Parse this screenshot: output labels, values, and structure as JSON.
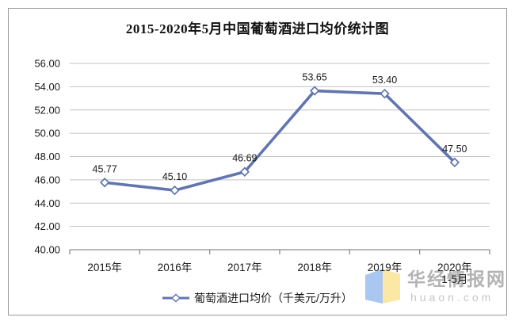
{
  "title": "2015-2020年5月中国葡萄酒进口均价统计图",
  "legend": {
    "label": "葡萄酒进口均价（千美元/万升）"
  },
  "watermark": {
    "site_name": "华经情报网",
    "site_url": "huaon.com"
  },
  "colors": {
    "line": "#6176AF",
    "marker_fill": "#FFFFFF",
    "grid": "#C3C3C3",
    "axis": "#8C8C8C",
    "text": "#1A1A1A",
    "border": "#9A9A9A",
    "watermark_text": "#A6A6A6",
    "watermark_url": "#C6C6C6",
    "logo_blue": "#A9C7F0",
    "logo_yellow": "#FAE8A4"
  },
  "chart_data": {
    "type": "line",
    "title": "2015-2020年5月中国葡萄酒进口均价统计图",
    "categories": [
      "2015年",
      "2016年",
      "2017年",
      "2018年",
      "2019年",
      "2020年"
    ],
    "category_sublabels": [
      "",
      "",
      "",
      "",
      "",
      "1-5月"
    ],
    "series": [
      {
        "name": "葡萄酒进口均价（千美元/万升）",
        "values": [
          45.77,
          45.1,
          46.69,
          53.65,
          53.4,
          47.5
        ],
        "labels": [
          "45.77",
          "45.10",
          "46.69",
          "53.65",
          "53.40",
          "47.50"
        ]
      }
    ],
    "xlabel": "",
    "ylabel": "",
    "ylim": [
      40,
      56
    ],
    "ytick_step": 2,
    "ytick_decimals": 2,
    "grid": true,
    "legend_position": "bottom",
    "marker": "open-diamond"
  }
}
